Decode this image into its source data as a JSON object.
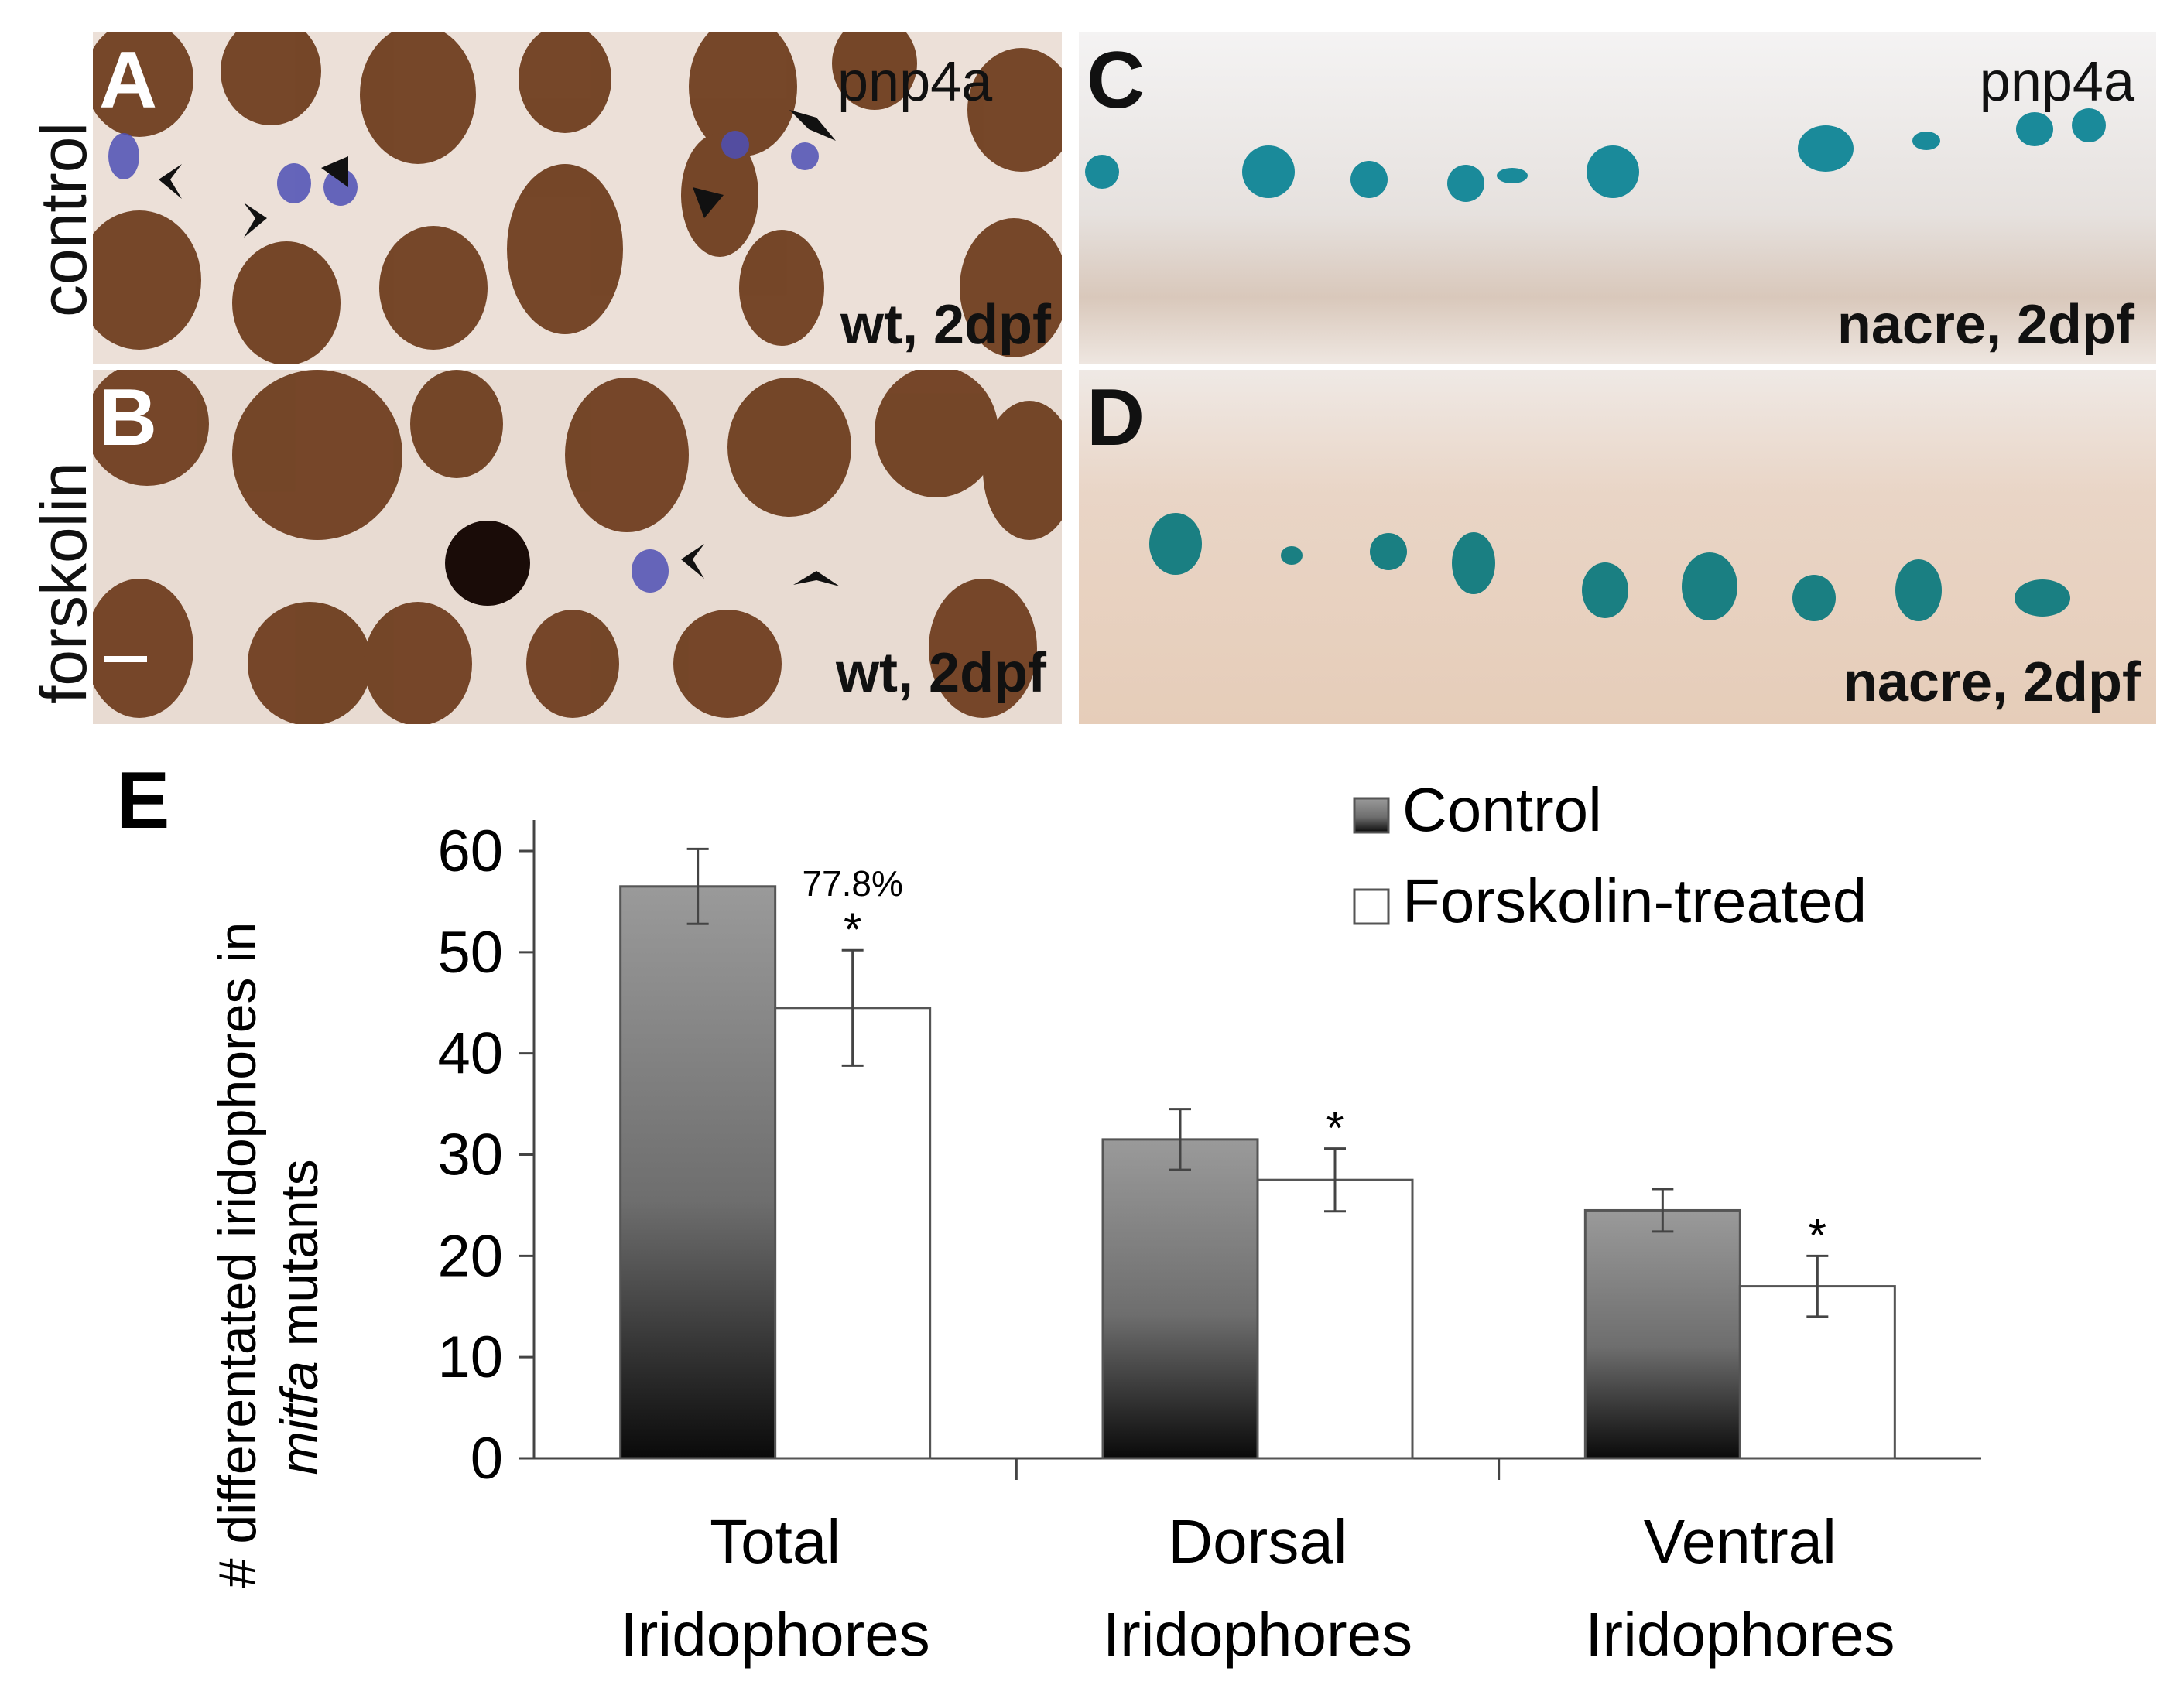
{
  "figure": {
    "panels": [
      {
        "id": "A",
        "letter": "A",
        "marker": "pnp4a",
        "stage": "wt, 2dpf"
      },
      {
        "id": "B",
        "letter": "B",
        "marker": "",
        "stage": "wt, 2dpf"
      },
      {
        "id": "C",
        "letter": "C",
        "marker": "pnp4a",
        "stage": "nacre, 2dpf"
      },
      {
        "id": "D",
        "letter": "D",
        "marker": "",
        "stage": "nacre, 2dpf"
      }
    ],
    "row_labels": {
      "top": "control",
      "bottom": "forskolin"
    },
    "chart_letter": "E"
  },
  "chart_data": {
    "type": "bar",
    "categories": [
      "Total Iridophores",
      "Dorsal Iridophores",
      "Ventral Iridophores"
    ],
    "category_lines": [
      [
        "Total",
        "Iridophores"
      ],
      [
        "Dorsal",
        "Iridophores"
      ],
      [
        "Ventral",
        "Iridophores"
      ]
    ],
    "series": [
      {
        "name": "Control",
        "values": [
          56.5,
          31.5,
          24.5
        ],
        "errors": [
          3.7,
          3.0,
          2.1
        ],
        "fill": "gradient-dark"
      },
      {
        "name": "Forskolin-treated",
        "values": [
          44.5,
          27.5,
          17.0
        ],
        "errors": [
          5.7,
          3.1,
          3.0
        ],
        "fill": "#ffffff"
      }
    ],
    "annotations": {
      "percent": "77.8%",
      "significance": [
        "*",
        "*",
        "*"
      ]
    },
    "ylabel_parts": [
      "# differentated iridophores in",
      "mitfa",
      " mutants"
    ],
    "xlabel": "",
    "title": "",
    "ylim": [
      0,
      60
    ],
    "yticks": [
      0,
      10,
      20,
      30,
      40,
      50,
      60
    ],
    "legend_position": "top-right",
    "grid": false
  }
}
